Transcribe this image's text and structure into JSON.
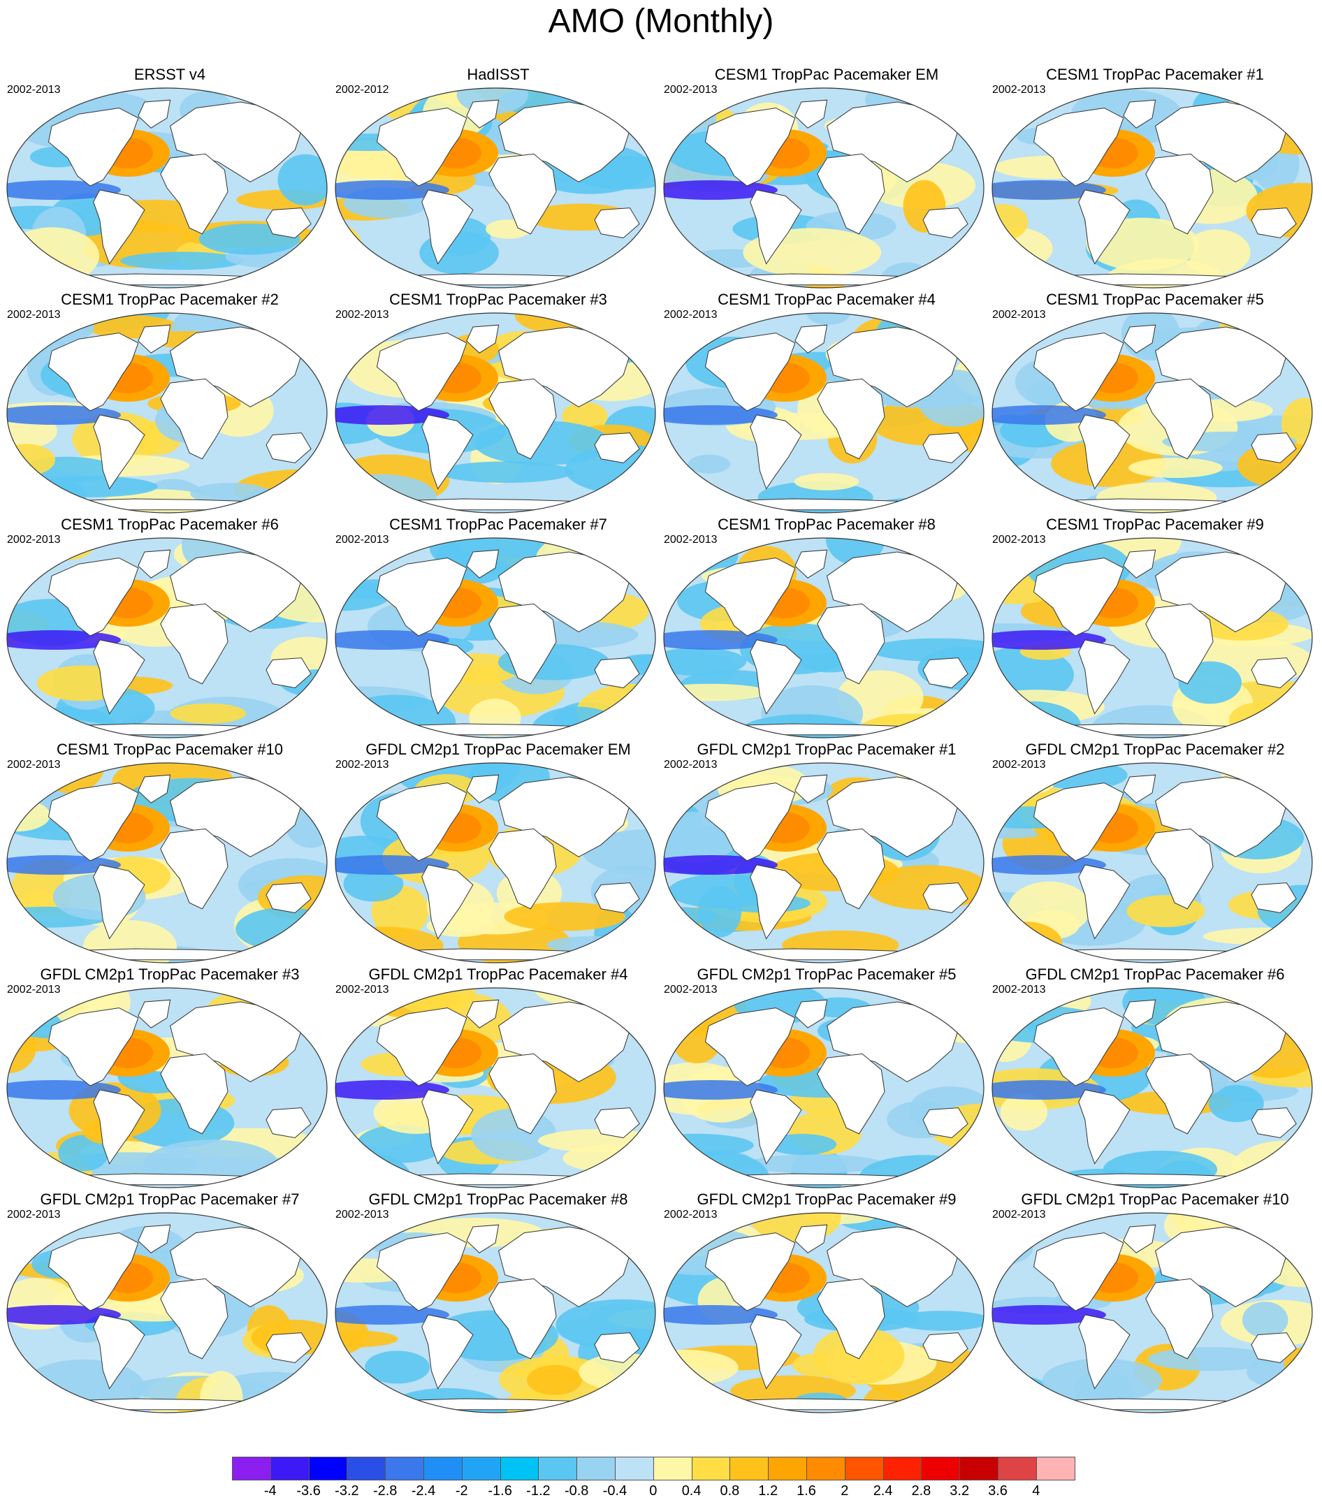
{
  "title": "AMO (Monthly)",
  "panels": [
    {
      "title": "ERSST v4",
      "period": "2002-2013"
    },
    {
      "title": "HadISST",
      "period": "2002-2012"
    },
    {
      "title": "CESM1 TropPac Pacemaker EM",
      "period": "2002-2013"
    },
    {
      "title": "CESM1 TropPac Pacemaker #1",
      "period": "2002-2013"
    },
    {
      "title": "CESM1 TropPac Pacemaker #2",
      "period": "2002-2013"
    },
    {
      "title": "CESM1 TropPac Pacemaker #3",
      "period": "2002-2013"
    },
    {
      "title": "CESM1 TropPac Pacemaker #4",
      "period": "2002-2013"
    },
    {
      "title": "CESM1 TropPac Pacemaker #5",
      "period": "2002-2013"
    },
    {
      "title": "CESM1 TropPac Pacemaker #6",
      "period": "2002-2013"
    },
    {
      "title": "CESM1 TropPac Pacemaker #7",
      "period": "2002-2013"
    },
    {
      "title": "CESM1 TropPac Pacemaker #8",
      "period": "2002-2013"
    },
    {
      "title": "CESM1 TropPac Pacemaker #9",
      "period": "2002-2013"
    },
    {
      "title": "CESM1 TropPac Pacemaker #10",
      "period": "2002-2013"
    },
    {
      "title": "GFDL CM2p1 TropPac Pacemaker EM",
      "period": "2002-2013"
    },
    {
      "title": "GFDL CM2p1 TropPac Pacemaker #1",
      "period": "2002-2013"
    },
    {
      "title": "GFDL CM2p1 TropPac Pacemaker #2",
      "period": "2002-2013"
    },
    {
      "title": "GFDL CM2p1 TropPac Pacemaker #3",
      "period": "2002-2013"
    },
    {
      "title": "GFDL CM2p1 TropPac Pacemaker #4",
      "period": "2002-2013"
    },
    {
      "title": "GFDL CM2p1 TropPac Pacemaker #5",
      "period": "2002-2013"
    },
    {
      "title": "GFDL CM2p1 TropPac Pacemaker #6",
      "period": "2002-2013"
    },
    {
      "title": "GFDL CM2p1 TropPac Pacemaker #7",
      "period": "2002-2013"
    },
    {
      "title": "GFDL CM2p1 TropPac Pacemaker #8",
      "period": "2002-2013"
    },
    {
      "title": "GFDL CM2p1 TropPac Pacemaker #9",
      "period": "2002-2013"
    },
    {
      "title": "GFDL CM2p1 TropPac Pacemaker #10",
      "period": "2002-2013"
    }
  ],
  "colorbar": {
    "labels": [
      "-4",
      "-3.6",
      "-3.2",
      "-2.8",
      "-2.4",
      "-2",
      "-1.6",
      "-1.2",
      "-0.8",
      "-0.4",
      "0",
      "0.4",
      "0.8",
      "1.2",
      "1.6",
      "2",
      "2.4",
      "2.8",
      "3.2",
      "3.6",
      "4"
    ],
    "colors": [
      "#8a1ff0",
      "#3d1af5",
      "#0000ff",
      "#2a4fe6",
      "#3a78eb",
      "#1f8ef5",
      "#22a4f5",
      "#00c3f5",
      "#5bc6f2",
      "#98d3f2",
      "#bde1f5",
      "#fff7a8",
      "#ffdd44",
      "#ffc21a",
      "#ffa500",
      "#ff8c00",
      "#ff5500",
      "#ff2200",
      "#ee0000",
      "#c80000",
      "#de4444",
      "#ffb3b3"
    ]
  }
}
